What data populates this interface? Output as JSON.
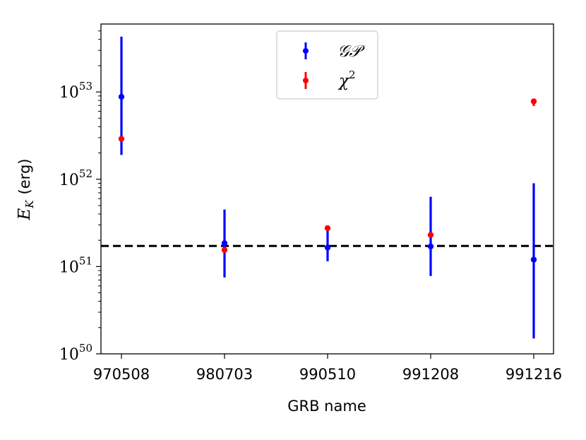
{
  "chart_data": {
    "type": "scatter",
    "xlabel": "GRB name",
    "ylabel_symbol": "E",
    "ylabel_subscript": "K",
    "ylabel_unit": "(erg)",
    "yscale": "log",
    "ylim": [
      1e+50,
      6e+53
    ],
    "yticks": [
      {
        "base": "10",
        "exp": "50",
        "value": 1e+50
      },
      {
        "base": "10",
        "exp": "51",
        "value": 1e+51
      },
      {
        "base": "10",
        "exp": "52",
        "value": 1e+52
      },
      {
        "base": "10",
        "exp": "53",
        "value": 1e+53
      }
    ],
    "categories": [
      "970508",
      "980703",
      "990510",
      "991208",
      "991216"
    ],
    "reference_line": {
      "value": 1.72e+51,
      "style": "dashed",
      "color": "#000000"
    },
    "legend_position": "top-center",
    "series": [
      {
        "name": "𝒢𝒫",
        "color": "#0000ff",
        "points": [
          {
            "y": 8.8e+52,
            "ylow": 1.9e+52,
            "yhigh": 4.3e+53
          },
          {
            "y": 1.85e+51,
            "ylow": 7.5e+50,
            "yhigh": 4.5e+51
          },
          {
            "y": 1.65e+51,
            "ylow": 1.15e+51,
            "yhigh": 2.8e+51
          },
          {
            "y": 1.7e+51,
            "ylow": 7.8e+50,
            "yhigh": 6.3e+51
          },
          {
            "y": 1.2e+51,
            "ylow": 1.5e+50,
            "yhigh": 9e+51
          }
        ]
      },
      {
        "name": "χ",
        "name_superscript": "2",
        "color": "#ff0000",
        "points": [
          {
            "y": 2.9e+52,
            "ylow": 2.75e+52,
            "yhigh": 3.05e+52
          },
          {
            "y": 1.55e+51,
            "ylow": 1.5e+51,
            "yhigh": 1.6e+51
          },
          {
            "y": 2.75e+51,
            "ylow": 2.6e+51,
            "yhigh": 2.9e+51
          },
          {
            "y": 2.3e+51,
            "ylow": 2.2e+51,
            "yhigh": 2.4e+51
          },
          {
            "y": 7.8e+52,
            "ylow": 6.9e+52,
            "yhigh": 8.4e+52
          }
        ]
      }
    ]
  }
}
